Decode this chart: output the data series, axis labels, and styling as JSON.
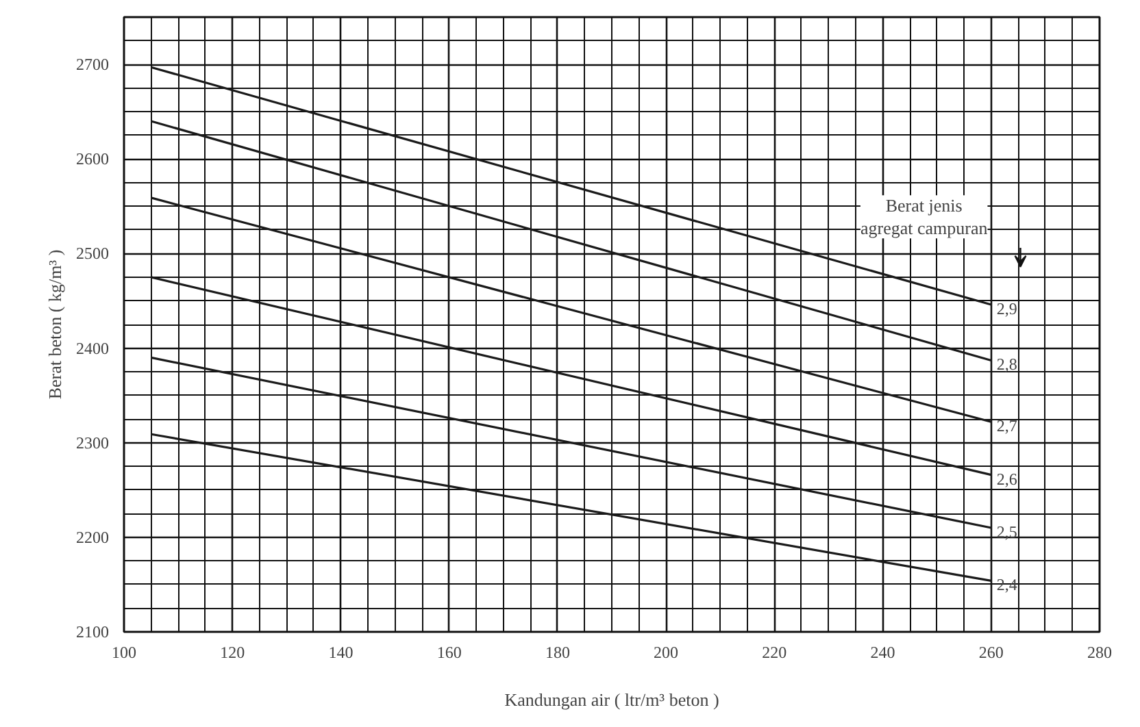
{
  "chart_data": {
    "type": "line",
    "xlabel": "Kandungan air ( ltr/m³ beton )",
    "ylabel": "Berat beton ( kg/m³ )",
    "xlim": [
      100,
      280
    ],
    "ylim": [
      2100,
      2750
    ],
    "xticks": [
      100,
      120,
      140,
      160,
      180,
      200,
      220,
      240,
      260,
      280
    ],
    "yticks": [
      2100,
      2200,
      2300,
      2400,
      2500,
      2600,
      2700
    ],
    "grid": true,
    "legend": false,
    "marker": "none",
    "line_style": "solid",
    "x": [
      105,
      260
    ],
    "series": [
      {
        "name": "2,9",
        "color": "#1a1a1a",
        "values": [
          2697,
          2446
        ]
      },
      {
        "name": "2,8",
        "color": "#1a1a1a",
        "values": [
          2640,
          2387
        ]
      },
      {
        "name": "2,7",
        "color": "#1a1a1a",
        "values": [
          2559,
          2322
        ]
      },
      {
        "name": "2,6",
        "color": "#1a1a1a",
        "values": [
          2475,
          2266
        ]
      },
      {
        "name": "2,5",
        "color": "#1a1a1a",
        "values": [
          2390,
          2210
        ]
      },
      {
        "name": "2,4",
        "color": "#1a1a1a",
        "values": [
          2309,
          2154
        ]
      }
    ],
    "annotations": [
      "Berat jenis\nagregat campuran"
    ]
  }
}
